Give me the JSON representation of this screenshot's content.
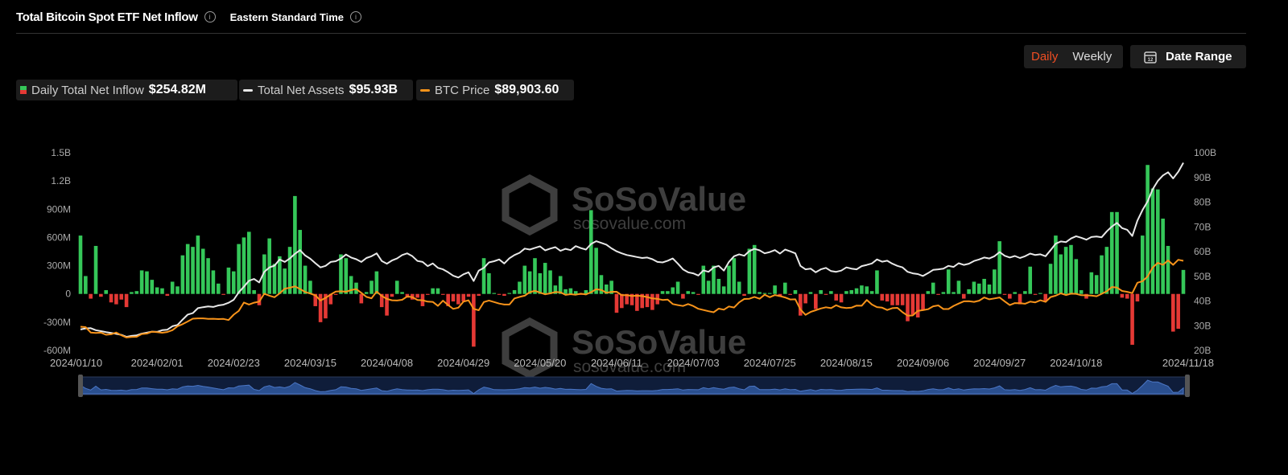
{
  "header": {
    "title": "Total Bitcoin Spot ETF Net Inflow",
    "timezone": "Eastern Standard Time"
  },
  "controls": {
    "daily": "Daily",
    "weekly": "Weekly",
    "date_range": "Date Range"
  },
  "watermark": {
    "brand": "SoSoValue",
    "url": "sosovalue.com"
  },
  "chart_data": {
    "type": "bar-line",
    "grid": false,
    "categories": [
      "2024/01/10",
      null,
      null,
      null,
      null,
      null,
      null,
      null,
      null,
      null,
      null,
      null,
      null,
      null,
      null,
      "2024/02/01",
      null,
      null,
      null,
      null,
      null,
      null,
      null,
      null,
      null,
      null,
      null,
      null,
      null,
      null,
      "2024/02/23",
      null,
      null,
      null,
      null,
      null,
      null,
      null,
      null,
      null,
      null,
      null,
      null,
      null,
      null,
      "2024/03/15",
      null,
      null,
      null,
      null,
      null,
      null,
      null,
      null,
      null,
      null,
      null,
      null,
      null,
      null,
      "2024/04/08",
      null,
      null,
      null,
      null,
      null,
      null,
      null,
      null,
      null,
      null,
      null,
      null,
      null,
      null,
      "2024/04/29",
      null,
      null,
      null,
      null,
      null,
      null,
      null,
      null,
      null,
      null,
      null,
      null,
      null,
      null,
      "2024/05/20",
      null,
      null,
      null,
      null,
      null,
      null,
      null,
      null,
      null,
      null,
      null,
      null,
      null,
      null,
      "2024/06/11",
      null,
      null,
      null,
      null,
      null,
      null,
      null,
      null,
      null,
      null,
      null,
      null,
      null,
      null,
      "2024/07/03",
      null,
      null,
      null,
      null,
      null,
      null,
      null,
      null,
      null,
      null,
      null,
      null,
      null,
      null,
      "2024/07/25",
      null,
      null,
      null,
      null,
      null,
      null,
      null,
      null,
      null,
      null,
      null,
      null,
      null,
      null,
      "2024/08/15",
      null,
      null,
      null,
      null,
      null,
      null,
      null,
      null,
      null,
      null,
      null,
      null,
      null,
      null,
      "2024/09/06",
      null,
      null,
      null,
      null,
      null,
      null,
      null,
      null,
      null,
      null,
      null,
      null,
      null,
      null,
      "2024/09/27",
      null,
      null,
      null,
      null,
      null,
      null,
      null,
      null,
      null,
      null,
      null,
      null,
      null,
      null,
      "2024/10/18",
      null,
      null,
      null,
      null,
      null,
      null,
      null,
      null,
      null,
      null,
      null,
      null,
      null,
      null,
      null,
      null,
      null,
      null,
      null,
      null,
      "2024/11/18"
    ],
    "ylim": [
      -600,
      1500
    ],
    "yticks": [
      {
        "value": -600,
        "label": "-600M"
      },
      {
        "value": -300,
        "label": "-300M"
      },
      0,
      {
        "value": 300,
        "label": "300M"
      },
      {
        "value": 600,
        "label": "600M"
      },
      {
        "value": 900,
        "label": "900M"
      },
      {
        "value": 1200,
        "label": "1.2B"
      },
      {
        "value": 1500,
        "label": "1.5B"
      }
    ],
    "y2lim": [
      20,
      100
    ],
    "y2ticks": [
      {
        "value": 20,
        "label": "20B"
      },
      {
        "value": 30,
        "label": "30B"
      },
      {
        "value": 40,
        "label": "40B"
      },
      {
        "value": 50,
        "label": "50B"
      },
      {
        "value": 60,
        "label": "60B"
      },
      {
        "value": 70,
        "label": "70B"
      },
      {
        "value": 80,
        "label": "80B"
      },
      {
        "value": 90,
        "label": "90B"
      },
      {
        "value": 100,
        "label": "100B"
      }
    ],
    "y3lim": [
      31000,
      161000
    ],
    "series": [
      {
        "name": "Daily Total Net Inflow",
        "summary": "$254.82M",
        "type": "bar",
        "color": "#35c759",
        "negative_color": "#e53935",
        "values": [
          620,
          190,
          -50,
          510,
          -30,
          40,
          -90,
          -110,
          -60,
          -140,
          20,
          30,
          250,
          240,
          150,
          70,
          60,
          -20,
          130,
          80,
          410,
          530,
          500,
          620,
          480,
          380,
          250,
          110,
          -10,
          280,
          240,
          530,
          600,
          660,
          40,
          -120,
          420,
          590,
          320,
          400,
          270,
          500,
          1040,
          680,
          300,
          140,
          -130,
          -300,
          -260,
          -110,
          -10,
          420,
          380,
          190,
          120,
          -100,
          20,
          140,
          240,
          -140,
          -230,
          -30,
          140,
          20,
          -40,
          -60,
          -40,
          -130,
          -10,
          60,
          60,
          -10,
          -130,
          -80,
          -110,
          -80,
          -30,
          -560,
          -20,
          380,
          220,
          10,
          -10,
          -20,
          10,
          40,
          130,
          300,
          240,
          380,
          220,
          330,
          250,
          90,
          190,
          50,
          60,
          30,
          -10,
          40,
          890,
          490,
          200,
          100,
          140,
          -200,
          -150,
          -110,
          -120,
          -180,
          -150,
          -140,
          -170,
          -110,
          30,
          30,
          70,
          130,
          -50,
          30,
          20,
          -10,
          300,
          140,
          300,
          160,
          80,
          300,
          380,
          130,
          -20,
          480,
          520,
          20,
          10,
          10,
          90,
          -30,
          120,
          -10,
          40,
          -230,
          -100,
          20,
          -160,
          40,
          -10,
          30,
          -70,
          -90,
          30,
          40,
          60,
          90,
          80,
          30,
          250,
          -70,
          -80,
          -120,
          -120,
          -120,
          -290,
          -220,
          -250,
          -170,
          30,
          120,
          -10,
          20,
          260,
          20,
          140,
          -50,
          50,
          130,
          110,
          160,
          100,
          260,
          560,
          -10,
          -50,
          20,
          -110,
          30,
          290,
          -10,
          10,
          -80,
          320,
          620,
          420,
          500,
          520,
          370,
          40,
          -50,
          230,
          200,
          410,
          500,
          870,
          870,
          -40,
          -50,
          -540,
          -80,
          620,
          1370,
          1120,
          1110,
          800,
          510,
          -400,
          -370,
          254.82
        ]
      },
      {
        "name": "Total Net Assets",
        "summary": "$95.93B",
        "type": "line",
        "axis": "y2",
        "color": "#e8e8e8",
        "values": [
          28.5,
          28.9,
          29,
          28.2,
          27.8,
          27.4,
          27.1,
          26.7,
          26.3,
          25.5,
          25.9,
          26.1,
          26.8,
          27.2,
          27.6,
          27.5,
          28.2,
          28.4,
          29.8,
          30.3,
          32.5,
          34.5,
          35.1,
          37.1,
          37.5,
          37.8,
          37.6,
          38.2,
          38.5,
          39.3,
          40.5,
          43.5,
          45.8,
          48.2,
          48.9,
          47.5,
          51.8,
          53.6,
          54.3,
          56.8,
          55.8,
          57.2,
          59.1,
          60.6,
          58.4,
          57.1,
          55.3,
          53.6,
          54.2,
          55.8,
          56.1,
          57.2,
          58.8,
          57.6,
          56.9,
          55.8,
          57.4,
          58.1,
          59.3,
          56.2,
          55.1,
          56.4,
          57.2,
          58.6,
          59.3,
          58.1,
          56.2,
          55.8,
          54.1,
          55.2,
          53.4,
          52.8,
          51.6,
          50.2,
          49.5,
          50.8,
          51.6,
          48.1,
          52.3,
          53.4,
          55.6,
          56.1,
          56.8,
          55.2,
          57.3,
          58.6,
          59.5,
          61.2,
          60.8,
          61.5,
          62.1,
          60.5,
          61.2,
          61.8,
          60.3,
          61.1,
          60.6,
          62.2,
          61.4,
          60.8,
          63.1,
          64.2,
          63.5,
          62.8,
          61.3,
          60.1,
          59.3,
          58.6,
          58.2,
          57.8,
          57.4,
          57.6,
          56.9,
          55.8,
          55.6,
          56.3,
          57.2,
          55.1,
          52.8,
          51.6,
          51.2,
          50.3,
          52.4,
          51.8,
          53.6,
          54.2,
          52.3,
          55.8,
          58.1,
          58.9,
          58.3,
          60.2,
          61.1,
          60.5,
          59.3,
          59.8,
          60.6,
          59.2,
          60.8,
          60.1,
          59.3,
          54.2,
          52.8,
          53.1,
          51.6,
          52.8,
          53.4,
          52.1,
          51.8,
          52.3,
          53.6,
          53.1,
          52.8,
          54.1,
          54.6,
          55.2,
          56.8,
          55.9,
          56.3,
          55.1,
          54.2,
          53.6,
          51.8,
          51.2,
          50.9,
          50.1,
          51.3,
          52.6,
          52.8,
          53.1,
          54.2,
          53.8,
          55.3,
          54.6,
          55.1,
          56.2,
          56.8,
          57.6,
          57.2,
          58.1,
          59.8,
          58.3,
          57.6,
          58.2,
          57.4,
          58.1,
          59.2,
          58.6,
          58.9,
          58.1,
          60.6,
          63.2,
          64.1,
          63.8,
          65.3,
          66.2,
          65.6,
          64.8,
          65.9,
          66.1,
          65.8,
          68.2,
          70.1,
          71.6,
          69.5,
          68.8,
          66.3,
          72.5,
          76.8,
          80.3,
          85.2,
          88.6,
          90.8,
          92.1,
          89.6,
          92.3,
          95.93
        ]
      },
      {
        "name": "BTC Price",
        "summary": "$89,903.60",
        "type": "line",
        "axis": "y3",
        "color": "#f7931a",
        "values": [
          46600,
          46300,
          42800,
          42500,
          42700,
          41300,
          41600,
          42800,
          41000,
          39500,
          39900,
          40000,
          41800,
          42100,
          43300,
          43000,
          42600,
          43100,
          44300,
          46900,
          48300,
          50000,
          51900,
          52100,
          52100,
          51700,
          51800,
          51600,
          51700,
          51000,
          54500,
          57000,
          62500,
          61200,
          62400,
          63100,
          68300,
          67000,
          66000,
          68500,
          71600,
          72200,
          73100,
          71400,
          69400,
          68400,
          67200,
          63800,
          65500,
          67800,
          69700,
          69900,
          69600,
          70700,
          71300,
          68900,
          66200,
          65300,
          69700,
          66800,
          64900,
          64000,
          63800,
          64300,
          66500,
          66000,
          64200,
          64000,
          63100,
          62900,
          60300,
          63700,
          60800,
          58300,
          59100,
          63100,
          64000,
          58300,
          57400,
          62800,
          63800,
          62800,
          61800,
          61200,
          61200,
          65200,
          66200,
          67000,
          69300,
          70200,
          69000,
          67900,
          68500,
          69400,
          69200,
          67500,
          68000,
          67600,
          68300,
          67800,
          69300,
          71200,
          70800,
          68900,
          69500,
          69600,
          67300,
          67300,
          66800,
          67000,
          66700,
          66100,
          65200,
          64900,
          64200,
          64400,
          61500,
          60800,
          60200,
          61500,
          60200,
          58400,
          57600,
          56800,
          56100,
          58500,
          57800,
          59900,
          59200,
          62600,
          64800,
          65000,
          66200,
          65000,
          67600,
          66000,
          67400,
          66700,
          65800,
          64500,
          64600,
          57900,
          54400,
          56300,
          57400,
          58600,
          59400,
          58800,
          60700,
          59300,
          58900,
          59100,
          60500,
          60400,
          64200,
          61200,
          59500,
          59100,
          57600,
          58800,
          59000,
          56100,
          53900,
          54000,
          57000,
          57500,
          58100,
          60000,
          60600,
          58200,
          58200,
          60300,
          61800,
          63300,
          63400,
          62900,
          63700,
          65800,
          64600,
          65200,
          65800,
          63300,
          60800,
          62100,
          62000,
          61700,
          63100,
          62600,
          64000,
          62900,
          66100,
          67000,
          68500,
          67400,
          68300,
          68200,
          67300,
          67200,
          67100,
          66600,
          68200,
          69900,
          72700,
          72300,
          70100,
          69500,
          68700,
          75500,
          76500,
          79600,
          85500,
          88600,
          87300,
          90200,
          87300,
          90600,
          89903.6
        ]
      }
    ]
  }
}
